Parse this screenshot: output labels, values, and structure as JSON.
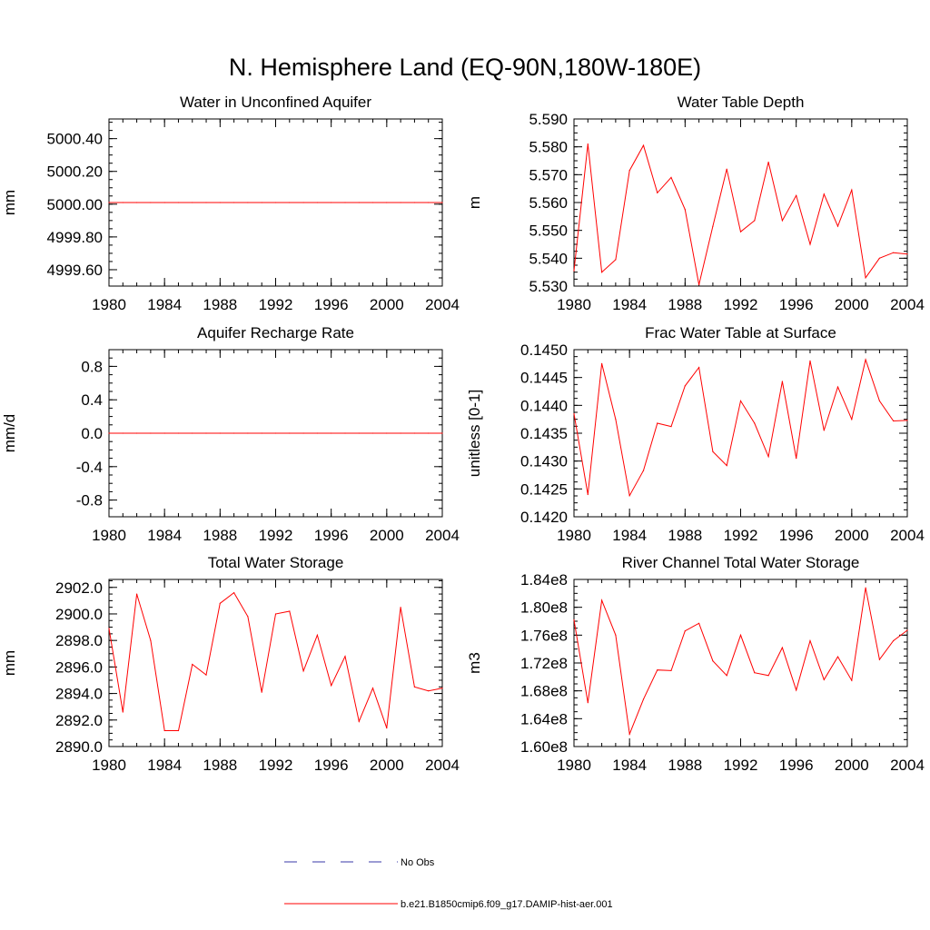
{
  "figure": {
    "title": "N. Hemisphere Land (EQ-90N,180W-180E)"
  },
  "colors": {
    "model_line": "#ff0000",
    "obs_line": "#3a3aaa",
    "axis": "#000000"
  },
  "legend": {
    "entries": [
      {
        "label": "No Obs",
        "style": "dashed",
        "color": "#3a3aaa"
      },
      {
        "label": "b.e21.B1850cmip6.f09_g17.DAMIP-hist-aer.001",
        "style": "solid",
        "color": "#ff0000"
      }
    ]
  },
  "chart_data": [
    {
      "type": "line",
      "title": "Water in Unconfined Aquifer",
      "ylabel": "mm",
      "xlim": [
        1980,
        2004
      ],
      "ylim": [
        4999.5,
        5000.52
      ],
      "xticks": [
        1980,
        1984,
        1988,
        1992,
        1996,
        2000,
        2004
      ],
      "yticks": [
        4999.6,
        4999.8,
        5000.0,
        5000.2,
        5000.4
      ],
      "yticklabels": [
        "4999.60",
        "4999.80",
        "5000.00",
        "5000.20",
        "5000.40"
      ],
      "yminor": 0.05,
      "x": [
        1980,
        1981,
        1982,
        1983,
        1984,
        1985,
        1986,
        1987,
        1988,
        1989,
        1990,
        1991,
        1992,
        1993,
        1994,
        1995,
        1996,
        1997,
        1998,
        1999,
        2000,
        2001,
        2002,
        2003,
        2004
      ],
      "series": [
        {
          "values": [
            5000.01,
            5000.01,
            5000.01,
            5000.01,
            5000.01,
            5000.01,
            5000.01,
            5000.01,
            5000.01,
            5000.01,
            5000.01,
            5000.01,
            5000.01,
            5000.01,
            5000.01,
            5000.01,
            5000.01,
            5000.01,
            5000.01,
            5000.01,
            5000.01,
            5000.01,
            5000.01,
            5000.01,
            5000.01
          ]
        }
      ]
    },
    {
      "type": "line",
      "title": "Water Table Depth",
      "ylabel": "m",
      "xlim": [
        1980,
        2004
      ],
      "ylim": [
        5.53,
        5.59
      ],
      "xticks": [
        1980,
        1984,
        1988,
        1992,
        1996,
        2000,
        2004
      ],
      "yticks": [
        5.53,
        5.54,
        5.55,
        5.56,
        5.57,
        5.58,
        5.59
      ],
      "yticklabels": [
        "5.530",
        "5.540",
        "5.550",
        "5.560",
        "5.570",
        "5.580",
        "5.590"
      ],
      "yminor": 0.0025,
      "x": [
        1980,
        1981,
        1982,
        1983,
        1984,
        1985,
        1986,
        1987,
        1988,
        1989,
        1990,
        1991,
        1992,
        1993,
        1994,
        1995,
        1996,
        1997,
        1998,
        1999,
        2000,
        2001,
        2002,
        2003,
        2004
      ],
      "series": [
        {
          "values": [
            5.5355,
            5.581,
            5.535,
            5.5395,
            5.5715,
            5.5805,
            5.5635,
            5.569,
            5.5575,
            5.5305,
            5.5515,
            5.572,
            5.5495,
            5.5535,
            5.5745,
            5.5535,
            5.5625,
            5.545,
            5.563,
            5.5515,
            5.5645,
            5.533,
            5.54,
            5.542,
            5.5415
          ]
        }
      ]
    },
    {
      "type": "line",
      "title": "Aquifer Recharge Rate",
      "ylabel": "mm/d",
      "xlim": [
        1980,
        2004
      ],
      "ylim": [
        -1.0,
        1.0
      ],
      "xticks": [
        1980,
        1984,
        1988,
        1992,
        1996,
        2000,
        2004
      ],
      "yticks": [
        -0.8,
        -0.4,
        0.0,
        0.4,
        0.8
      ],
      "yticklabels": [
        "-0.8",
        "-0.4",
        "0.0",
        "0.4",
        "0.8"
      ],
      "yminor": 0.1,
      "x": [
        1980,
        1981,
        1982,
        1983,
        1984,
        1985,
        1986,
        1987,
        1988,
        1989,
        1990,
        1991,
        1992,
        1993,
        1994,
        1995,
        1996,
        1997,
        1998,
        1999,
        2000,
        2001,
        2002,
        2003,
        2004
      ],
      "series": [
        {
          "values": [
            0,
            0,
            0,
            0,
            0,
            0,
            0,
            0,
            0,
            0,
            0,
            0,
            0,
            0,
            0,
            0,
            0,
            0,
            0,
            0,
            0,
            0,
            0,
            0,
            0
          ]
        }
      ]
    },
    {
      "type": "line",
      "title": "Frac Water Table at Surface",
      "ylabel": "unitless [0-1]",
      "xlim": [
        1980,
        2004
      ],
      "ylim": [
        0.142,
        0.145
      ],
      "xticks": [
        1980,
        1984,
        1988,
        1992,
        1996,
        2000,
        2004
      ],
      "yticks": [
        0.142,
        0.1425,
        0.143,
        0.1435,
        0.144,
        0.1445,
        0.145
      ],
      "yticklabels": [
        "0.1420",
        "0.1425",
        "0.1430",
        "0.1435",
        "0.1440",
        "0.1445",
        "0.1450"
      ],
      "yminor": 0.000125,
      "x": [
        1980,
        1981,
        1982,
        1983,
        1984,
        1985,
        1986,
        1987,
        1988,
        1989,
        1990,
        1991,
        1992,
        1993,
        1994,
        1995,
        1996,
        1997,
        1998,
        1999,
        2000,
        2001,
        2002,
        2003,
        2004
      ],
      "series": [
        {
          "values": [
            0.14385,
            0.1424,
            0.14475,
            0.14375,
            0.14238,
            0.14283,
            0.14368,
            0.14362,
            0.14435,
            0.14468,
            0.14317,
            0.14292,
            0.14408,
            0.14368,
            0.14308,
            0.14443,
            0.14305,
            0.1448,
            0.14355,
            0.14433,
            0.14375,
            0.14482,
            0.14408,
            0.14372,
            0.14373
          ]
        }
      ]
    },
    {
      "type": "line",
      "title": "Total Water Storage",
      "ylabel": "mm",
      "xlim": [
        1980,
        2004
      ],
      "ylim": [
        2890.0,
        2902.6
      ],
      "xticks": [
        1980,
        1984,
        1988,
        1992,
        1996,
        2000,
        2004
      ],
      "yticks": [
        2890,
        2892,
        2894,
        2896,
        2898,
        2900,
        2902
      ],
      "yticklabels": [
        "2890.0",
        "2892.0",
        "2894.0",
        "2896.0",
        "2898.0",
        "2900.0",
        "2902.0"
      ],
      "yminor": 0.5,
      "x": [
        1980,
        1981,
        1982,
        1983,
        1984,
        1985,
        1986,
        1987,
        1988,
        1989,
        1990,
        1991,
        1992,
        1993,
        1994,
        1995,
        1996,
        1997,
        1998,
        1999,
        2000,
        2001,
        2002,
        2003,
        2004
      ],
      "series": [
        {
          "values": [
            2898.9,
            2892.6,
            2901.5,
            2898.0,
            2891.2,
            2891.2,
            2896.2,
            2895.4,
            2900.8,
            2901.6,
            2899.8,
            2894.1,
            2900.0,
            2900.2,
            2895.7,
            2898.4,
            2894.6,
            2896.8,
            2891.9,
            2894.4,
            2891.4,
            2900.5,
            2894.5,
            2894.2,
            2894.4
          ]
        }
      ]
    },
    {
      "type": "line",
      "title": "River Channel Total Water Storage",
      "ylabel": "m3",
      "xlim": [
        1980,
        2004
      ],
      "ylim": [
        160000000,
        184000000
      ],
      "xticks": [
        1980,
        1984,
        1988,
        1992,
        1996,
        2000,
        2004
      ],
      "yticks": [
        160000000,
        164000000,
        168000000,
        172000000,
        176000000,
        180000000,
        184000000
      ],
      "yticklabels": [
        "1.60e8",
        "1.64e8",
        "1.68e8",
        "1.72e8",
        "1.76e8",
        "1.80e8",
        "1.84e8"
      ],
      "yminor": 1000000,
      "x": [
        1980,
        1981,
        1982,
        1983,
        1984,
        1985,
        1986,
        1987,
        1988,
        1989,
        1990,
        1991,
        1992,
        1993,
        1994,
        1995,
        1996,
        1997,
        1998,
        1999,
        2000,
        2001,
        2002,
        2003,
        2004
      ],
      "series": [
        {
          "values": [
            178200000,
            166300000,
            181000000,
            176000000,
            161800000,
            166800000,
            171000000,
            170900000,
            176600000,
            177700000,
            172300000,
            170200000,
            176000000,
            170600000,
            170200000,
            174200000,
            168100000,
            175200000,
            169600000,
            172900000,
            169500000,
            182800000,
            172500000,
            175200000,
            176700000
          ]
        }
      ]
    }
  ]
}
